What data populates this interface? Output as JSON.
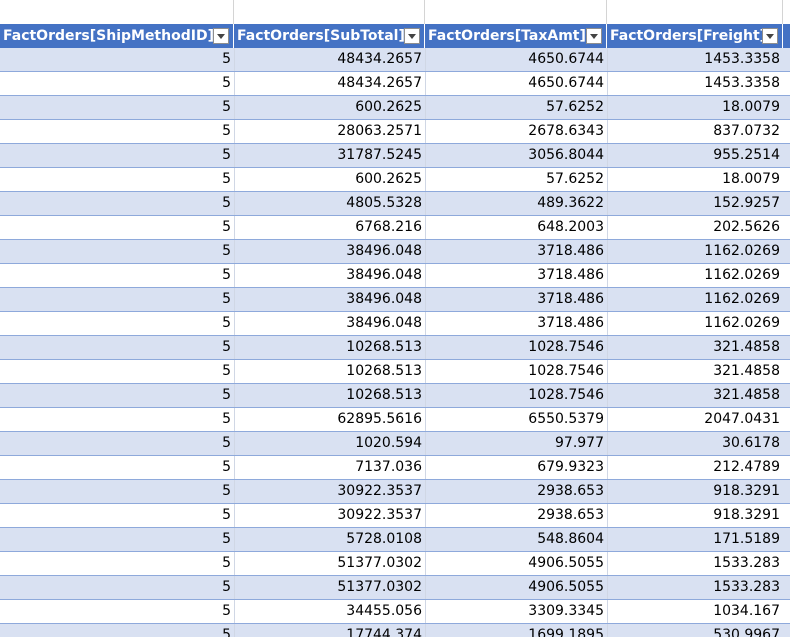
{
  "table": {
    "columns": [
      {
        "label": "FactOrders[ShipMethodID]"
      },
      {
        "label": "FactOrders[SubTotal]"
      },
      {
        "label": "FactOrders[TaxAmt]"
      },
      {
        "label": "FactOrders[Freight]"
      }
    ],
    "rows": [
      [
        "5",
        "48434.2657",
        "4650.6744",
        "1453.3358"
      ],
      [
        "5",
        "48434.2657",
        "4650.6744",
        "1453.3358"
      ],
      [
        "5",
        "600.2625",
        "57.6252",
        "18.0079"
      ],
      [
        "5",
        "28063.2571",
        "2678.6343",
        "837.0732"
      ],
      [
        "5",
        "31787.5245",
        "3056.8044",
        "955.2514"
      ],
      [
        "5",
        "600.2625",
        "57.6252",
        "18.0079"
      ],
      [
        "5",
        "4805.5328",
        "489.3622",
        "152.9257"
      ],
      [
        "5",
        "6768.216",
        "648.2003",
        "202.5626"
      ],
      [
        "5",
        "38496.048",
        "3718.486",
        "1162.0269"
      ],
      [
        "5",
        "38496.048",
        "3718.486",
        "1162.0269"
      ],
      [
        "5",
        "38496.048",
        "3718.486",
        "1162.0269"
      ],
      [
        "5",
        "38496.048",
        "3718.486",
        "1162.0269"
      ],
      [
        "5",
        "10268.513",
        "1028.7546",
        "321.4858"
      ],
      [
        "5",
        "10268.513",
        "1028.7546",
        "321.4858"
      ],
      [
        "5",
        "10268.513",
        "1028.7546",
        "321.4858"
      ],
      [
        "5",
        "62895.5616",
        "6550.5379",
        "2047.0431"
      ],
      [
        "5",
        "1020.594",
        "97.977",
        "30.6178"
      ],
      [
        "5",
        "7137.036",
        "679.9323",
        "212.4789"
      ],
      [
        "5",
        "30922.3537",
        "2938.653",
        "918.3291"
      ],
      [
        "5",
        "30922.3537",
        "2938.653",
        "918.3291"
      ],
      [
        "5",
        "5728.0108",
        "548.8604",
        "171.5189"
      ],
      [
        "5",
        "51377.0302",
        "4906.5055",
        "1533.283"
      ],
      [
        "5",
        "51377.0302",
        "4906.5055",
        "1533.283"
      ],
      [
        "5",
        "34455.056",
        "3309.3345",
        "1034.167"
      ],
      [
        "5",
        "17744.374",
        "1699.1895",
        "530.9967"
      ]
    ]
  },
  "colors": {
    "header_bg": "#4472c4",
    "band_row": "#d9e1f2",
    "plain_row": "#ffffff",
    "row_border": "#8ea9db"
  },
  "icons": {
    "filter_button": "dropdown-arrow-icon"
  }
}
